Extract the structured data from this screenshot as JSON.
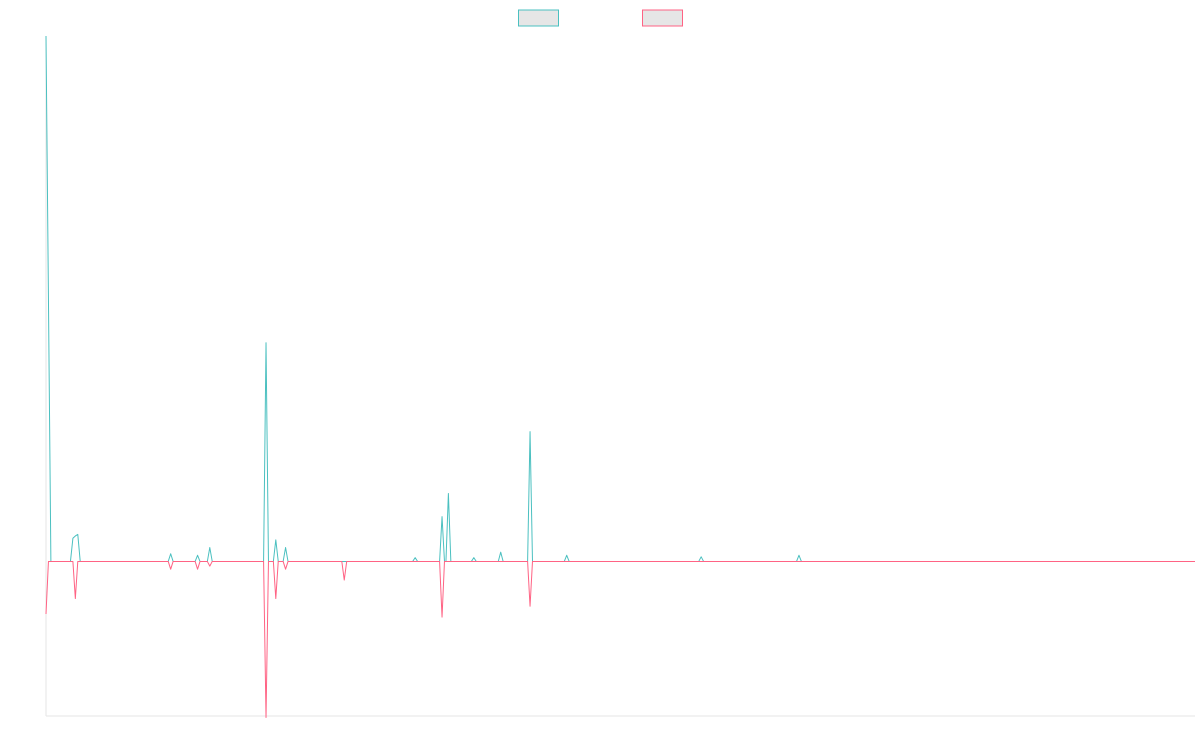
{
  "chart_data": {
    "type": "line",
    "title": "",
    "xlabel": "",
    "ylabel": "",
    "grid": false,
    "legend": "top-center",
    "xlim": [
      0,
      235
    ],
    "ylim": [
      -200,
      680
    ],
    "colors": [
      "#4bc0c0",
      "#ff6384"
    ],
    "legend_fill": "#e6e6e6",
    "series": [
      {
        "name": "",
        "color": "#4bc0c0",
        "points": [
          [
            0,
            680
          ],
          [
            1,
            0
          ],
          [
            5,
            0
          ],
          [
            5.5,
            30
          ],
          [
            6,
            33
          ],
          [
            6.5,
            35
          ],
          [
            7,
            0
          ],
          [
            25,
            0
          ],
          [
            25.5,
            10
          ],
          [
            26,
            0
          ],
          [
            30.5,
            0
          ],
          [
            31,
            8
          ],
          [
            31.5,
            0
          ],
          [
            33,
            0
          ],
          [
            33.5,
            18
          ],
          [
            34,
            0
          ],
          [
            44.5,
            0
          ],
          [
            45,
            283
          ],
          [
            45.5,
            0
          ],
          [
            46.5,
            0
          ],
          [
            47,
            28
          ],
          [
            47.5,
            0
          ],
          [
            48.5,
            0
          ],
          [
            49,
            18
          ],
          [
            49.5,
            0
          ],
          [
            75,
            0
          ],
          [
            75.5,
            5
          ],
          [
            76,
            0
          ],
          [
            80.5,
            0
          ],
          [
            81,
            58
          ],
          [
            81.5,
            0
          ],
          [
            81.8,
            0
          ],
          [
            82.3,
            88
          ],
          [
            82.8,
            0
          ],
          [
            87,
            0
          ],
          [
            87.5,
            5
          ],
          [
            88,
            0
          ],
          [
            92.5,
            0
          ],
          [
            93,
            12
          ],
          [
            93.5,
            0
          ],
          [
            98.5,
            0
          ],
          [
            99,
            168
          ],
          [
            99.5,
            0
          ],
          [
            106,
            0
          ],
          [
            106.5,
            8
          ],
          [
            107,
            0
          ],
          [
            133.5,
            0
          ],
          [
            134,
            6
          ],
          [
            134.5,
            0
          ],
          [
            153.5,
            0
          ],
          [
            154,
            8
          ],
          [
            154.5,
            0
          ],
          [
            235,
            0
          ]
        ]
      },
      {
        "name": "",
        "color": "#ff6384",
        "points": [
          [
            0,
            -68
          ],
          [
            0.5,
            0
          ],
          [
            5.5,
            0
          ],
          [
            6,
            -48
          ],
          [
            6.5,
            0
          ],
          [
            25,
            0
          ],
          [
            25.5,
            -10
          ],
          [
            26,
            0
          ],
          [
            30.5,
            0
          ],
          [
            31,
            -10
          ],
          [
            31.5,
            0
          ],
          [
            33,
            0
          ],
          [
            33.5,
            -6
          ],
          [
            34,
            0
          ],
          [
            44.5,
            0
          ],
          [
            45,
            -202
          ],
          [
            45.5,
            0
          ],
          [
            46.5,
            0
          ],
          [
            47,
            -48
          ],
          [
            47.5,
            0
          ],
          [
            48.5,
            0
          ],
          [
            49,
            -10
          ],
          [
            49.5,
            0
          ],
          [
            60.5,
            0
          ],
          [
            61,
            -24
          ],
          [
            61.5,
            0
          ],
          [
            80.5,
            0
          ],
          [
            81,
            -72
          ],
          [
            81.5,
            0
          ],
          [
            98.5,
            0
          ],
          [
            99,
            -58
          ],
          [
            99.5,
            0
          ],
          [
            235,
            0
          ]
        ]
      }
    ]
  }
}
